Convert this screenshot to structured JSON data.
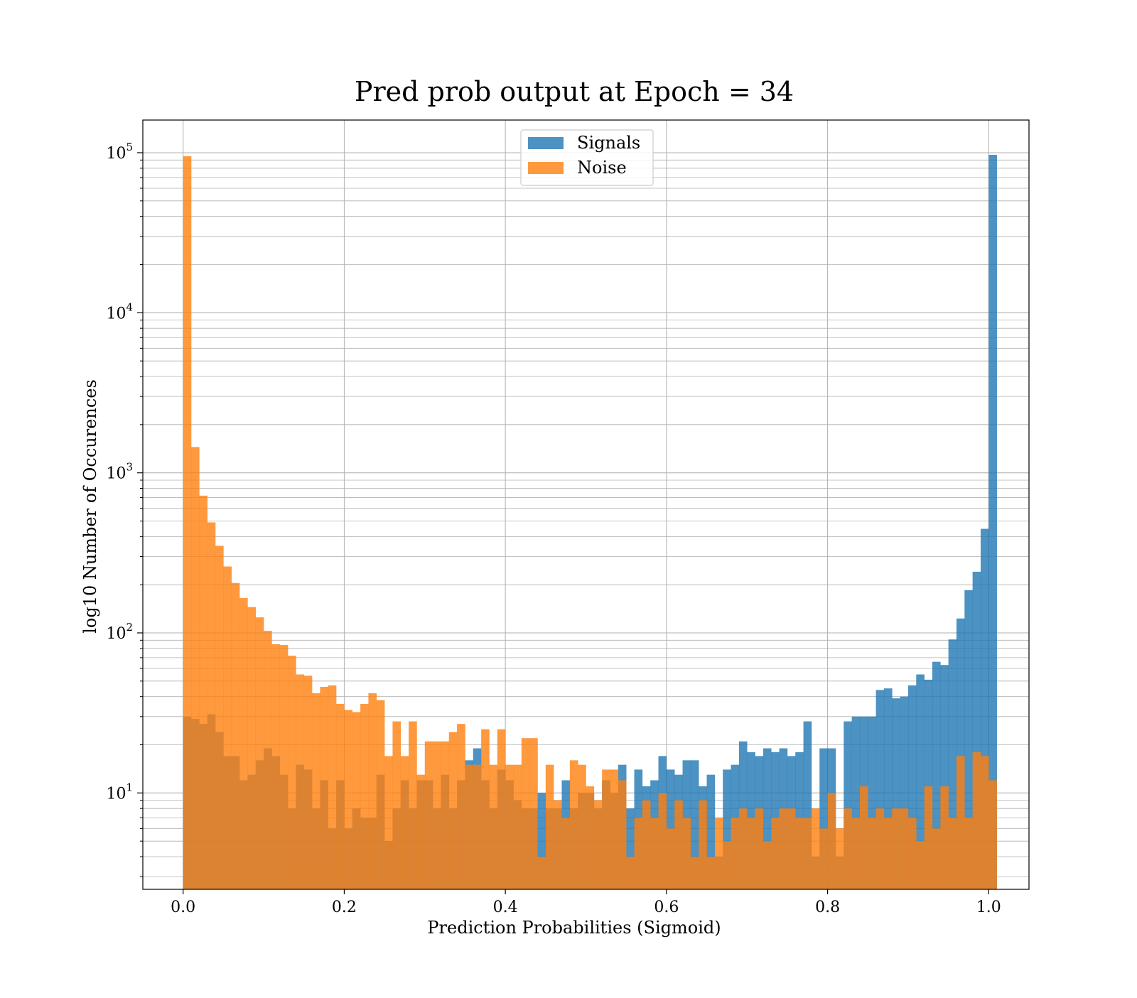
{
  "chart_data": {
    "type": "bar",
    "title": "Pred prob output at Epoch = 34",
    "xlabel": "Prediction Probabilities (Sigmoid)",
    "ylabel": "log10 Number of Occurences",
    "xlim": [
      -0.05,
      1.05
    ],
    "ylim": [
      2.5,
      160000
    ],
    "yscale": "log",
    "grid": true,
    "legend_position": "top-center",
    "bin_start": 0.0,
    "bin_width": 0.01,
    "x_ticks": [
      "0.0",
      "0.2",
      "0.4",
      "0.6",
      "0.8",
      "1.0"
    ],
    "x_tick_values": [
      0.0,
      0.2,
      0.4,
      0.6,
      0.8,
      1.0
    ],
    "y_ticks": [
      {
        "base": "10",
        "exp": "1",
        "value": 10
      },
      {
        "base": "10",
        "exp": "2",
        "value": 100
      },
      {
        "base": "10",
        "exp": "3",
        "value": 1000
      },
      {
        "base": "10",
        "exp": "4",
        "value": 10000
      },
      {
        "base": "10",
        "exp": "5",
        "value": 100000
      }
    ],
    "series": [
      {
        "name": "Signals",
        "color": "#1f77b4",
        "values": [
          30,
          29,
          27,
          31,
          24,
          17,
          17,
          12,
          13,
          16,
          19,
          17,
          13,
          8,
          15,
          14,
          8,
          12,
          6,
          12,
          6,
          8,
          7,
          7,
          13,
          5,
          8,
          12,
          8,
          12,
          12,
          8,
          13,
          8,
          12,
          16,
          19,
          12,
          8,
          14,
          12,
          9,
          8,
          8,
          10,
          8,
          8,
          12,
          8,
          10,
          10,
          8,
          12,
          10,
          15,
          8,
          14,
          11,
          12,
          17,
          14,
          13,
          16,
          16,
          11,
          13,
          4,
          14,
          15,
          21,
          18,
          17,
          19,
          18,
          19,
          17,
          18,
          28,
          4,
          19,
          19,
          4,
          28,
          30,
          30,
          30,
          44,
          45,
          39,
          40,
          47,
          55,
          51,
          66,
          63,
          91,
          123,
          185,
          241,
          447,
          97000
        ]
      },
      {
        "name": "Noise",
        "color": "#ff7f0e",
        "values": [
          95000,
          1450,
          720,
          490,
          350,
          260,
          205,
          165,
          145,
          125,
          103,
          85,
          84,
          72,
          55,
          54,
          42,
          46,
          47,
          36,
          33,
          32,
          36,
          42,
          38,
          17,
          28,
          17,
          28,
          13,
          21,
          21,
          21,
          24,
          27,
          15,
          15,
          25,
          15,
          25,
          15,
          15,
          22,
          22,
          4,
          15,
          9,
          7,
          16,
          15,
          11,
          9,
          14,
          14,
          12,
          4,
          7,
          9,
          7,
          10,
          6,
          9,
          7,
          4,
          9,
          4,
          7,
          5,
          7,
          8,
          7,
          8,
          5,
          7,
          8,
          8,
          7,
          7,
          8,
          6,
          10,
          6,
          8,
          7,
          11,
          7,
          8,
          7,
          8,
          8,
          7,
          5,
          11,
          6,
          11,
          7,
          17,
          7,
          18,
          17,
          12
        ]
      }
    ]
  }
}
